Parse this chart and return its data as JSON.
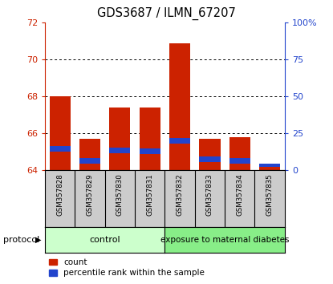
{
  "title": "GDS3687 / ILMN_67207",
  "samples": [
    "GSM357828",
    "GSM357829",
    "GSM357830",
    "GSM357831",
    "GSM357832",
    "GSM357833",
    "GSM357834",
    "GSM357835"
  ],
  "red_values": [
    68.0,
    65.7,
    67.4,
    67.4,
    70.9,
    65.7,
    65.8,
    64.2
  ],
  "blue_bottom": [
    65.0,
    64.35,
    64.95,
    64.9,
    65.45,
    64.45,
    64.35,
    64.2
  ],
  "blue_height": [
    0.3,
    0.3,
    0.3,
    0.3,
    0.3,
    0.3,
    0.3,
    0.18
  ],
  "ylim_left": [
    64,
    72
  ],
  "ylim_right": [
    0,
    100
  ],
  "yticks_left": [
    64,
    66,
    68,
    70,
    72
  ],
  "yticks_right": [
    0,
    25,
    50,
    75,
    100
  ],
  "ytick_labels_right": [
    "0",
    "25",
    "50",
    "75",
    "100%"
  ],
  "control_label": "control",
  "diabetes_label": "exposure to maternal diabetes",
  "protocol_label": "protocol",
  "legend_red": "count",
  "legend_blue": "percentile rank within the sample",
  "bar_width": 0.7,
  "red_color": "#cc2200",
  "blue_color": "#2244cc",
  "control_bg": "#ccffcc",
  "diabetes_bg": "#88ee88",
  "tick_area_bg": "#cccccc",
  "baseline": 64,
  "n_control": 4,
  "n_total": 8
}
